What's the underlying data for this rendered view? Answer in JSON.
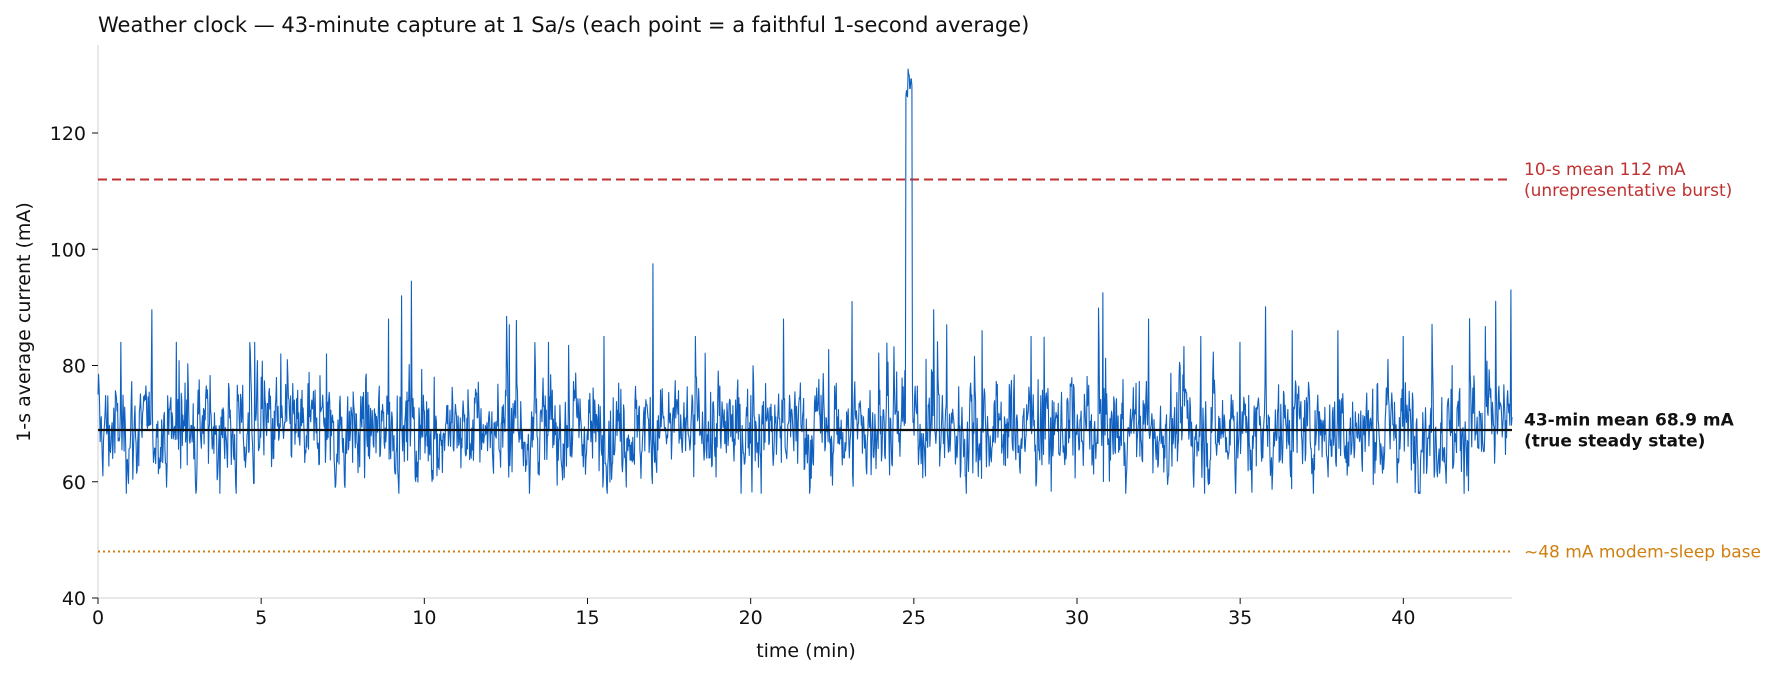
{
  "chart_data": {
    "type": "line",
    "title": "Weather clock — 43-minute capture at 1 Sa/s (each point = a faithful 1-second average)",
    "xlabel": "time (min)",
    "ylabel": "1-s average current (mA)",
    "xlim": [
      0,
      43.33
    ],
    "ylim": [
      40,
      135
    ],
    "xticks": [
      0,
      5,
      10,
      15,
      20,
      25,
      30,
      35,
      40
    ],
    "yticks": [
      40,
      60,
      80,
      100,
      120
    ],
    "grid": false,
    "series": [
      {
        "color": "#1060c0",
        "description_points": [
          [
            0.0,
            75
          ],
          [
            0.7,
            84
          ],
          [
            1.2,
            62
          ],
          [
            2.4,
            84
          ],
          [
            3.0,
            58
          ],
          [
            4.8,
            84
          ],
          [
            5.6,
            82
          ],
          [
            7.0,
            82
          ],
          [
            8.9,
            88
          ],
          [
            9.3,
            92
          ],
          [
            9.6,
            94.5
          ],
          [
            10.3,
            78
          ],
          [
            12.6,
            87
          ],
          [
            13.8,
            84
          ],
          [
            15.5,
            85
          ],
          [
            17.0,
            97.5
          ],
          [
            18.3,
            85
          ],
          [
            21.0,
            88
          ],
          [
            23.1,
            91
          ],
          [
            24.6,
            70
          ],
          [
            24.85,
            128
          ],
          [
            24.9,
            131
          ],
          [
            25.0,
            68
          ],
          [
            26.0,
            87
          ],
          [
            27.1,
            86
          ],
          [
            28.6,
            85
          ],
          [
            30.8,
            92.5
          ],
          [
            32.2,
            88
          ],
          [
            33.8,
            85
          ],
          [
            35.0,
            84
          ],
          [
            36.6,
            86
          ],
          [
            38.0,
            86
          ],
          [
            40.0,
            85
          ],
          [
            41.5,
            80
          ],
          [
            43.3,
            93
          ]
        ],
        "baseline_mean": 68.9,
        "noise_range": [
          58,
          82
        ],
        "burst": {
          "start": 24.75,
          "end": 24.95,
          "peak": 131
        }
      }
    ],
    "reference_lines": [
      {
        "y": 112,
        "style": "dashed",
        "color": "#c03030",
        "label_lines": [
          "10-s mean 112 mA",
          "(unrepresentative burst)"
        ]
      },
      {
        "y": 68.9,
        "style": "solid",
        "color": "#111111",
        "bold": true,
        "label_lines": [
          "43-min mean 68.9 mA",
          "(true steady state)"
        ]
      },
      {
        "y": 48,
        "style": "dotted",
        "color": "#d08010",
        "label_lines": [
          "~48 mA modem-sleep base"
        ]
      }
    ]
  }
}
